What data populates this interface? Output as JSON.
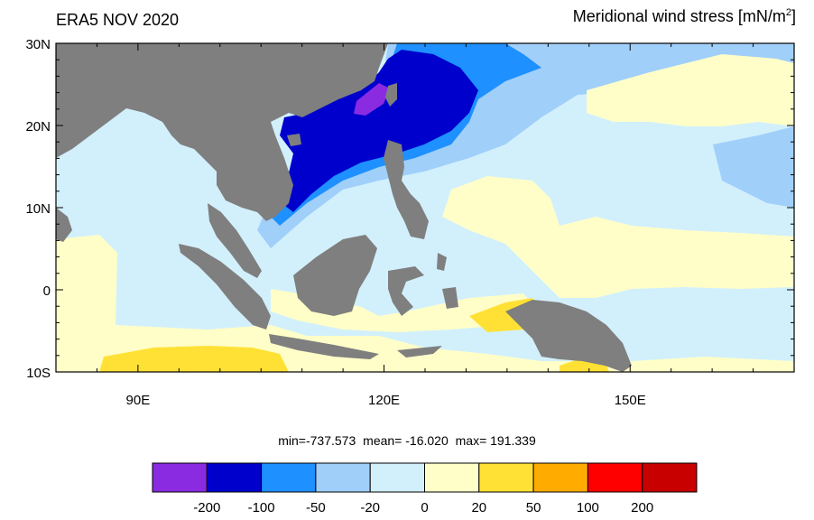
{
  "header": {
    "title_left": "ERA5 NOV 2020",
    "title_right_main": "Meridional wind stress [mN/m",
    "title_right_sup": "2",
    "title_right_end": "]"
  },
  "map": {
    "lat_range": [
      -10,
      30
    ],
    "lon_range": [
      80,
      170
    ],
    "lat_ticks": [
      {
        "value": 30,
        "label": "30N"
      },
      {
        "value": 20,
        "label": "20N"
      },
      {
        "value": 10,
        "label": "10N"
      },
      {
        "value": 0,
        "label": "0"
      },
      {
        "value": -10,
        "label": "10S"
      }
    ],
    "lon_ticks": [
      {
        "value": 90,
        "label": "90E"
      },
      {
        "value": 120,
        "label": "120E"
      },
      {
        "value": 150,
        "label": "150E"
      }
    ],
    "land_color": "#7f7f7f"
  },
  "stats": {
    "min_label": "min=-737.573",
    "mean_label": "mean= -16.020",
    "max_label": "max= 191.339"
  },
  "colorbar": {
    "colors": [
      "#8a2be2",
      "#0000cd",
      "#1e90ff",
      "#a0cffa",
      "#d2f0fc",
      "#fffec8",
      "#ffe135",
      "#ffab00",
      "#ff0000",
      "#c80000"
    ],
    "labels": [
      "-200",
      "-100",
      "-50",
      "-20",
      "0",
      "20",
      "50",
      "100",
      "200"
    ]
  }
}
